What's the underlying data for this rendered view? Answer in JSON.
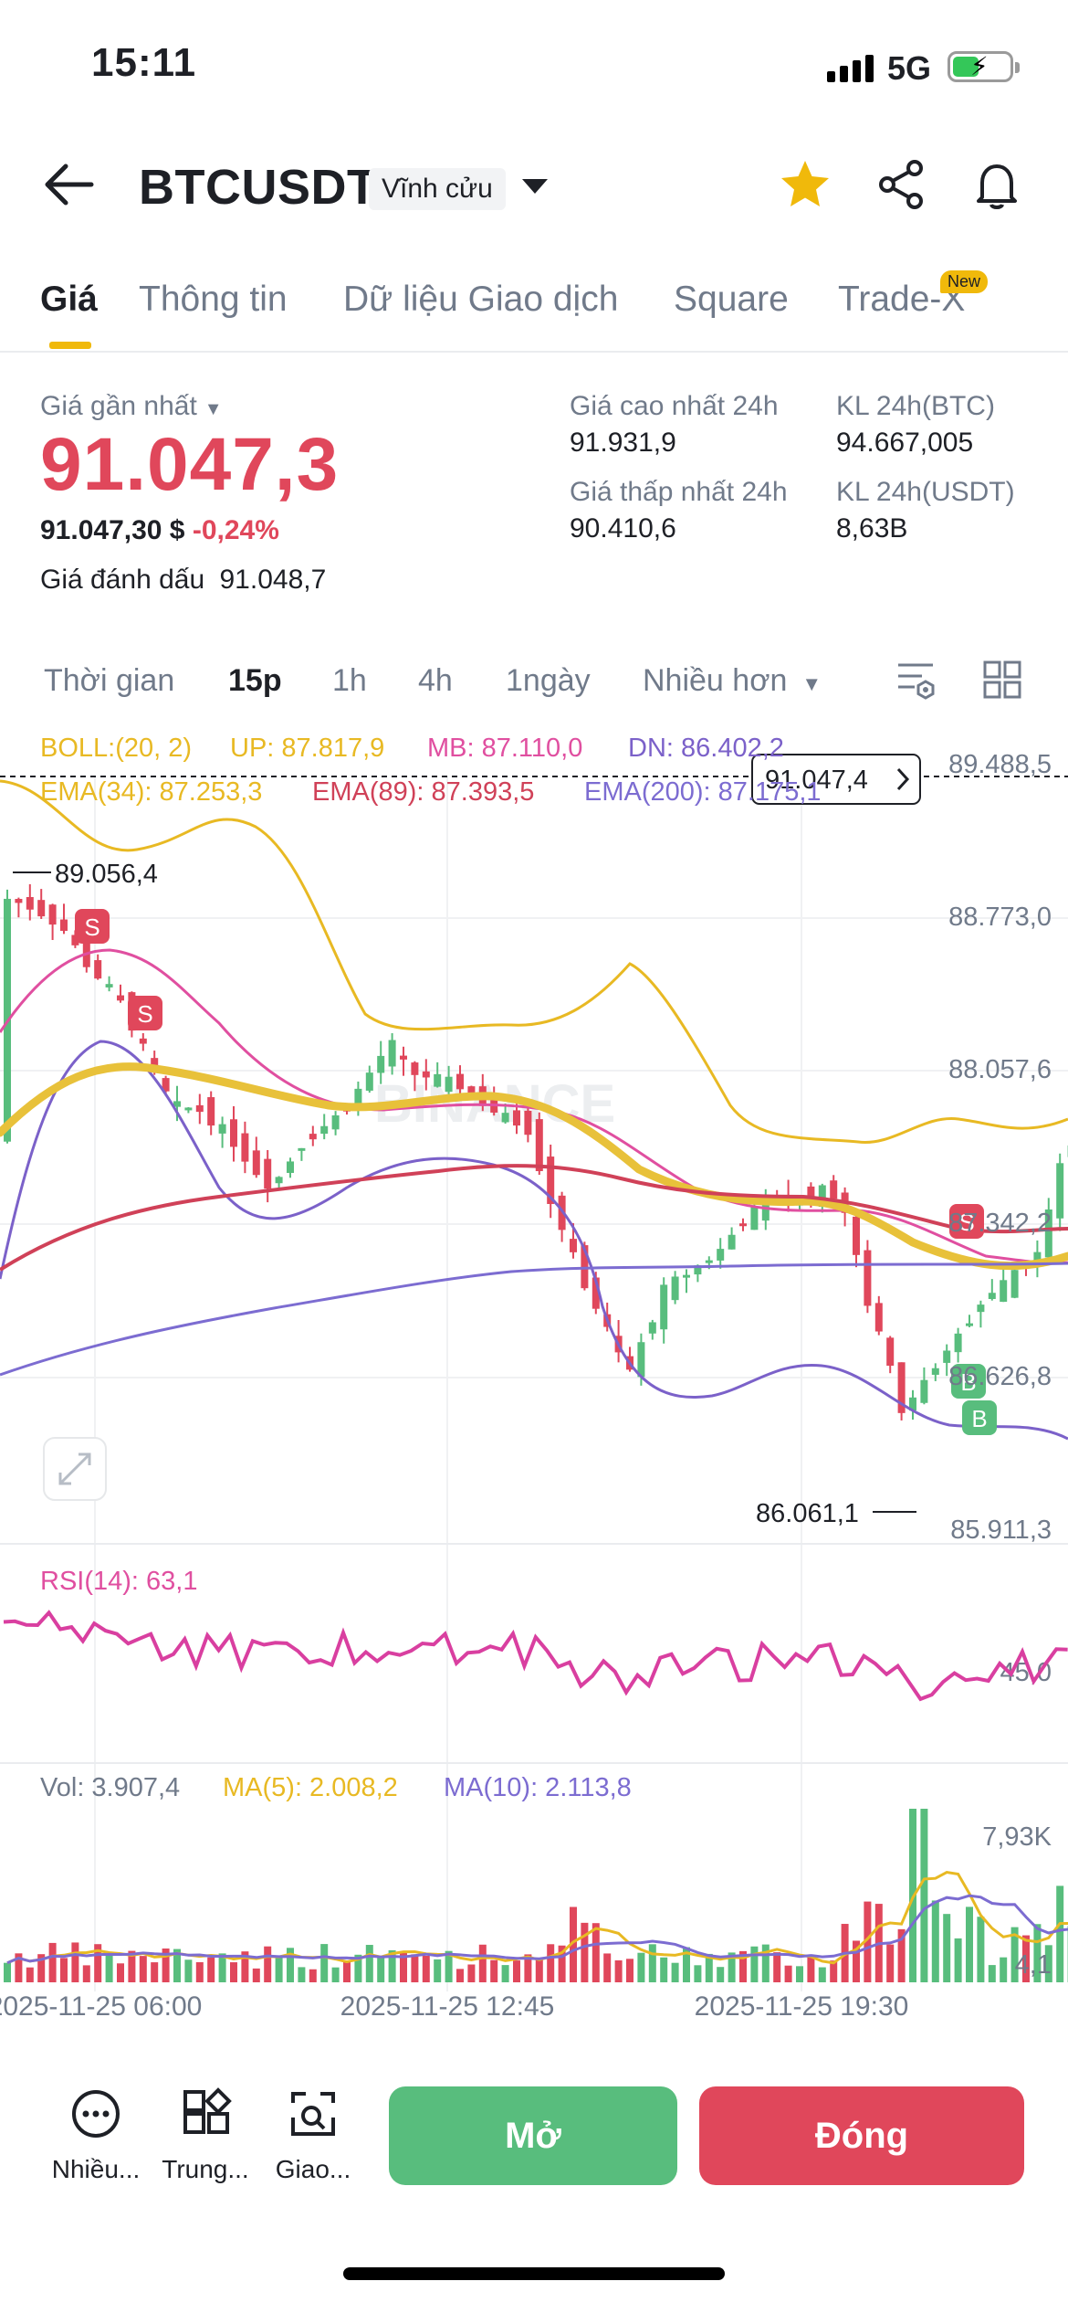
{
  "status": {
    "time": "15:11",
    "network": "5G",
    "battery_level": 0.46
  },
  "header": {
    "pair": "BTCUSDT",
    "contract": "Vĩnh cửu"
  },
  "tabs": [
    {
      "label": "Giá"
    },
    {
      "label": "Thông tin"
    },
    {
      "label": "Dữ liệu Giao dịch"
    },
    {
      "label": "Square"
    },
    {
      "label": "Trade-X"
    }
  ],
  "new_badge": "New",
  "price": {
    "last_label": "Giá gần nhất",
    "last": "91.047,3",
    "usd_value": "91.047,30 $",
    "change": "-0,24%",
    "mark_label": "Giá đánh dấu",
    "mark": "91.048,7",
    "high_label": "Giá cao nhất 24h",
    "high": "91.931,9",
    "low_label": "Giá thấp nhất 24h",
    "low": "90.410,6",
    "vol_btc_label": "KL 24h(BTC)",
    "vol_btc": "94.667,005",
    "vol_usdt_label": "KL 24h(USDT)",
    "vol_usdt": "8,63B"
  },
  "timeframes": [
    "Thời gian",
    "15p",
    "1h",
    "4h",
    "1ngày",
    "Nhiều hơn"
  ],
  "indicators": {
    "boll": "BOLL:(20, 2)",
    "up": "UP: 87.817,9",
    "mb": "MB: 87.110,0",
    "dn": "DN: 86.402,2",
    "ema34": "EMA(34): 87.253,3",
    "ema89": "EMA(89): 87.393,5",
    "ema200": "EMA(200): 87.175,1",
    "rsi": "RSI(14): 63,1",
    "vol": "Vol: 3.907,4",
    "ma5": "MA(5): 2.008,2",
    "ma10": "MA(10): 2.113,8"
  },
  "chart_labels": {
    "current_price": "91.047,4",
    "high_marker": "89.056,4",
    "low_marker": "86.061,1",
    "y_ticks": [
      "89.488,5",
      "88.773,0",
      "88.057,6",
      "87.342,2",
      "86.626,8",
      "85.911,3"
    ],
    "rsi_tick": "45,0",
    "vol_tick_top": "7,93K",
    "vol_tick_bottom": "4,1",
    "x_ticks": [
      "2025-11-25 06:00",
      "2025-11-25 12:45",
      "2025-11-25 19:30"
    ],
    "watermark": "BINANCE",
    "signal_sell": "S",
    "signal_buy": "B"
  },
  "chart_data": {
    "type": "line",
    "x": [
      "2025-11-25 06:00",
      "2025-11-25 12:45",
      "2025-11-25 19:30"
    ],
    "series": [
      {
        "name": "UP",
        "values": [
          89.0,
          88.3,
          88.2
        ]
      },
      {
        "name": "MB",
        "values": [
          88.6,
          87.8,
          87.2
        ]
      },
      {
        "name": "DN",
        "values": [
          88.2,
          87.3,
          86.5
        ]
      },
      {
        "name": "EMA(34)",
        "values": [
          88.0,
          87.8,
          87.2
        ]
      },
      {
        "name": "EMA(89)",
        "values": [
          87.3,
          87.6,
          87.4
        ]
      },
      {
        "name": "EMA(200)",
        "values": [
          86.7,
          87.0,
          87.2
        ]
      }
    ],
    "colors": {
      "up": "#e8b923",
      "mb": "#e04fa0",
      "dn": "#7b61c9",
      "ema34": "#e8c13a",
      "ema89": "#d04158",
      "ema200": "#7c6cd1",
      "rise": "#58bd7d",
      "fall": "#e0475b"
    },
    "ylim": [
      85.9113,
      89.4885
    ],
    "grid": true
  },
  "bottom": {
    "more": "Nhiều...",
    "middle": "Trung...",
    "trade": "Giao...",
    "open": "Mở",
    "close": "Đóng"
  }
}
